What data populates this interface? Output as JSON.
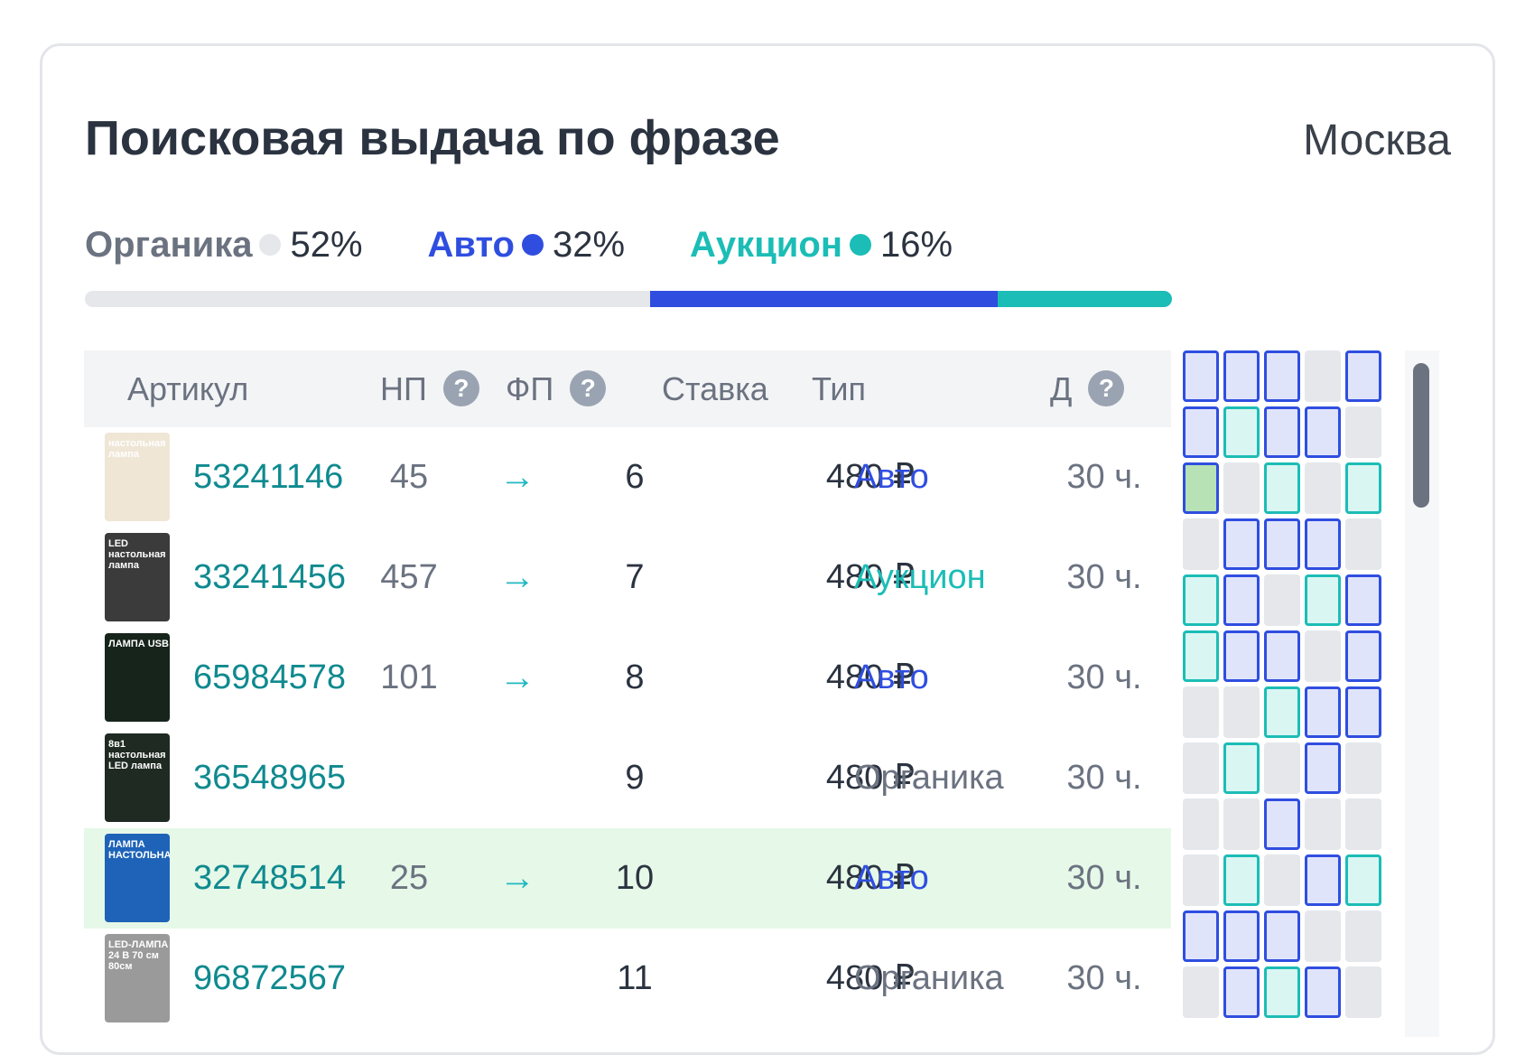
{
  "title": "Поисковая выдача по фразе",
  "region": "Москва",
  "legend": [
    {
      "label": "Органика",
      "value": "52%",
      "label_color": "#6b7280",
      "dot_color": "#e5e7eb",
      "fraction": 0.52
    },
    {
      "label": "Авто",
      "value": "32%",
      "label_color": "#2f4ee0",
      "dot_color": "#2f4ee0",
      "fraction": 0.32
    },
    {
      "label": "Аукцион",
      "value": "16%",
      "label_color": "#1bbdb6",
      "dot_color": "#1bbdb6",
      "fraction": 0.16
    }
  ],
  "columns": {
    "article": "Артикул",
    "np": "НП",
    "fp": "ФП",
    "bid": "Ставка",
    "type": "Тип",
    "d": "Д",
    "help_symbol": "?"
  },
  "arrow_symbol": "→",
  "type_colors": {
    "Авто": "#2f4ee0",
    "Аукцион": "#1bbdb6",
    "Органика": "#6b7280"
  },
  "rows": [
    {
      "article": "53241146",
      "np": "45",
      "fp": "6",
      "bid": "480 ₽",
      "type": "Авто",
      "d": "30 ч.",
      "highlight": false,
      "thumb_color": "#efe6d6",
      "thumb_text": "настольная лампа"
    },
    {
      "article": "33241456",
      "np": "457",
      "fp": "7",
      "bid": "480 ₽",
      "type": "Аукцион",
      "d": "30 ч.",
      "highlight": false,
      "thumb_color": "#3b3b3b",
      "thumb_text": "LED настольная лампа"
    },
    {
      "article": "65984578",
      "np": "101",
      "fp": "8",
      "bid": "480 ₽",
      "type": "Авто",
      "d": "30 ч.",
      "highlight": false,
      "thumb_color": "#16241c",
      "thumb_text": "ЛАМПА USB"
    },
    {
      "article": "36548965",
      "np": "",
      "fp": "9",
      "bid": "480 ₽",
      "type": "Органика",
      "d": "30 ч.",
      "highlight": false,
      "thumb_color": "#1f2a22",
      "thumb_text": "8в1 настольная LED лампа"
    },
    {
      "article": "32748514",
      "np": "25",
      "fp": "10",
      "bid": "480 ₽",
      "type": "Авто",
      "d": "30 ч.",
      "highlight": true,
      "thumb_color": "#1e63b8",
      "thumb_text": "ЛАМПА НАСТОЛЬНАЯ"
    },
    {
      "article": "96872567",
      "np": "",
      "fp": "11",
      "bid": "480 ₽",
      "type": "Органика",
      "d": "30 ч.",
      "highlight": false,
      "thumb_color": "#9a9a9a",
      "thumb_text": "LED-ЛАМПА 24 В 70 см 80см"
    }
  ],
  "position_grid": [
    [
      "a",
      "a",
      "a",
      "o",
      "a"
    ],
    [
      "a",
      "u",
      "a",
      "a",
      "o"
    ],
    [
      "g",
      "o",
      "u",
      "o",
      "u"
    ],
    [
      "o",
      "a",
      "a",
      "a",
      "o"
    ],
    [
      "u",
      "a",
      "o",
      "u",
      "a"
    ],
    [
      "u",
      "a",
      "a",
      "o",
      "a"
    ],
    [
      "o",
      "o",
      "u",
      "a",
      "a"
    ],
    [
      "o",
      "u",
      "o",
      "a",
      "o"
    ],
    [
      "o",
      "o",
      "a",
      "o",
      "o"
    ],
    [
      "o",
      "u",
      "o",
      "a",
      "u"
    ],
    [
      "a",
      "a",
      "a",
      "o",
      "o"
    ],
    [
      "o",
      "a",
      "u",
      "a",
      "o"
    ]
  ]
}
